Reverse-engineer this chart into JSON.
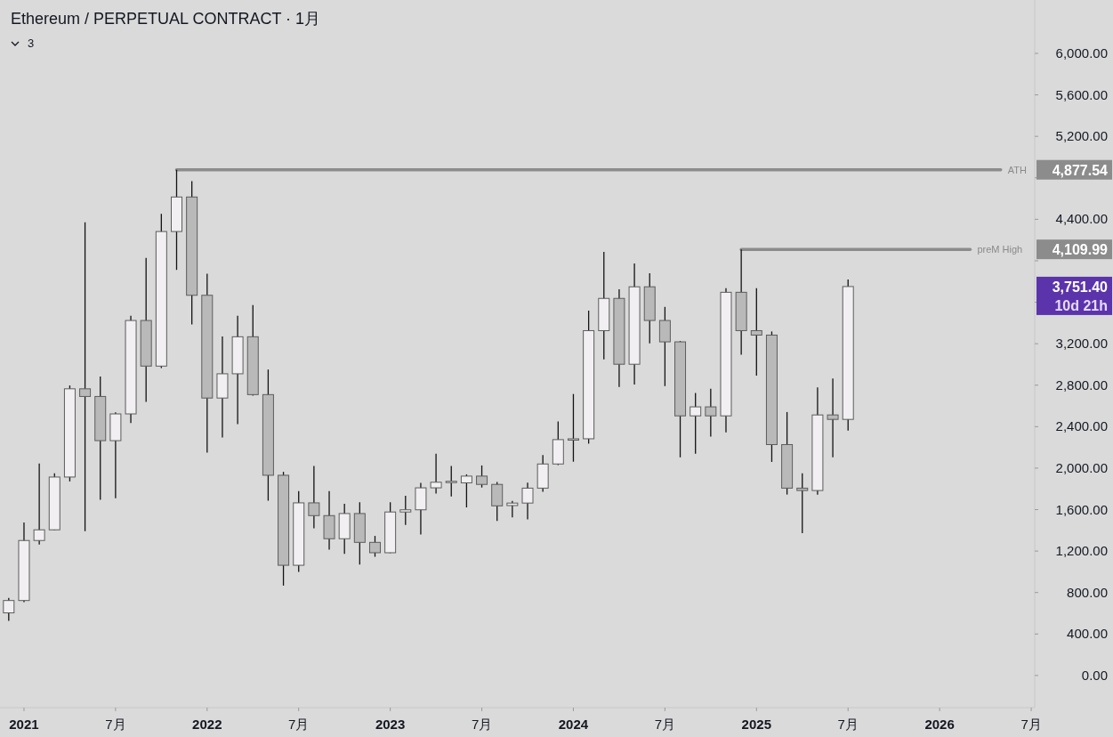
{
  "chart_data": {
    "type": "candlestick",
    "title": "Ethereum / PERPETUAL CONTRACT · 1月",
    "x": [
      "2020-12",
      "2021-01",
      "2021-02",
      "2021-03",
      "2021-04",
      "2021-05",
      "2021-06",
      "2021-07",
      "2021-08",
      "2021-09",
      "2021-10",
      "2021-11",
      "2021-12",
      "2022-01",
      "2022-02",
      "2022-03",
      "2022-04",
      "2022-05",
      "2022-06",
      "2022-07",
      "2022-08",
      "2022-09",
      "2022-10",
      "2022-11",
      "2022-12",
      "2023-01",
      "2023-02",
      "2023-03",
      "2023-04",
      "2023-05",
      "2023-06",
      "2023-07",
      "2023-08",
      "2023-09",
      "2023-10",
      "2023-11",
      "2023-12",
      "2024-01",
      "2024-02",
      "2024-03",
      "2024-04",
      "2024-05",
      "2024-06",
      "2024-07",
      "2024-08",
      "2024-09",
      "2024-10",
      "2024-11",
      "2024-12",
      "2025-01",
      "2025-02",
      "2025-03",
      "2025-04",
      "2025-05",
      "2025-06",
      "2025-07"
    ],
    "ohlc": [
      [
        604,
        749,
        527,
        723
      ],
      [
        723,
        1476,
        707,
        1302
      ],
      [
        1302,
        2044,
        1264,
        1405
      ],
      [
        1405,
        1949,
        1400,
        1914
      ],
      [
        1914,
        2797,
        1872,
        2765
      ],
      [
        2765,
        4370,
        1393,
        2691
      ],
      [
        2691,
        2883,
        1695,
        2265
      ],
      [
        2265,
        2537,
        1710,
        2523
      ],
      [
        2523,
        3469,
        2434,
        3424
      ],
      [
        3424,
        4027,
        2638,
        2984
      ],
      [
        2984,
        4453,
        2966,
        4282
      ],
      [
        4282,
        4877.54,
        3912,
        4615
      ],
      [
        4615,
        4769,
        3386,
        3667
      ],
      [
        3667,
        3876,
        2150,
        2676
      ],
      [
        2676,
        3270,
        2295,
        2910
      ],
      [
        2910,
        3469,
        2425,
        3267
      ],
      [
        3267,
        3572,
        2700,
        2709
      ],
      [
        2709,
        2951,
        1686,
        1931
      ],
      [
        1931,
        1964,
        867,
        1063
      ],
      [
        1063,
        1778,
        1000,
        1665
      ],
      [
        1665,
        2020,
        1420,
        1542
      ],
      [
        1542,
        1778,
        1213,
        1319
      ],
      [
        1319,
        1657,
        1172,
        1562
      ],
      [
        1562,
        1671,
        1069,
        1284
      ],
      [
        1284,
        1346,
        1145,
        1184
      ],
      [
        1184,
        1671,
        1180,
        1577
      ],
      [
        1577,
        1733,
        1452,
        1598
      ],
      [
        1598,
        1858,
        1360,
        1810
      ],
      [
        1810,
        2138,
        1754,
        1864
      ],
      [
        1864,
        2020,
        1727,
        1873
      ],
      [
        1858,
        1940,
        1621,
        1923
      ],
      [
        1923,
        2026,
        1813,
        1843
      ],
      [
        1843,
        1866,
        1490,
        1636
      ],
      [
        1639,
        1683,
        1524,
        1663
      ],
      [
        1663,
        1860,
        1506,
        1807
      ],
      [
        1807,
        2126,
        1772,
        2040
      ],
      [
        2040,
        2449,
        2030,
        2275
      ],
      [
        2282,
        2715,
        2062,
        2283
      ],
      [
        2283,
        3519,
        2236,
        3326
      ],
      [
        3326,
        4086,
        3049,
        3637
      ],
      [
        3637,
        3725,
        2783,
        3002
      ],
      [
        3002,
        3974,
        2806,
        3749
      ],
      [
        3749,
        3879,
        3203,
        3424
      ],
      [
        3424,
        3555,
        2791,
        3218
      ],
      [
        3218,
        3226,
        2104,
        2504
      ],
      [
        2504,
        2724,
        2138,
        2591
      ],
      [
        2591,
        2765,
        2304,
        2504
      ],
      [
        2504,
        3735,
        2345,
        3696
      ],
      [
        3696,
        4109.99,
        3093,
        3326
      ],
      [
        3326,
        3735,
        2892,
        3283
      ],
      [
        3283,
        3318,
        2060,
        2227
      ],
      [
        2227,
        2541,
        1745,
        1807
      ],
      [
        1807,
        1949,
        1372,
        1784
      ],
      [
        1784,
        2779,
        1745,
        2513
      ],
      [
        2513,
        2865,
        2104,
        2470
      ],
      [
        2470,
        3820,
        2363,
        3751.4
      ]
    ],
    "series": [
      {
        "type": "line",
        "name": "ATH",
        "color": "#8c8c8c",
        "x": [
          "2021-11",
          "2026-05"
        ],
        "values": [
          4877.54,
          4877.54
        ]
      },
      {
        "type": "line",
        "name": "preM  High",
        "color": "#8c8c8c",
        "x": [
          "2024-12",
          "2026-03"
        ],
        "values": [
          4109.99,
          4109.99
        ]
      }
    ],
    "annotations": [
      "4,877.54",
      "4,109.99",
      "3,751.40",
      "10d 21h",
      "3"
    ],
    "xlim": [
      "2020-11-14",
      "2026-07-08"
    ],
    "xticks": [
      {
        "value": "2021-01",
        "label": "2021"
      },
      {
        "value": "2021-07",
        "label": "7月"
      },
      {
        "value": "2022-01",
        "label": "2022"
      },
      {
        "value": "2022-07",
        "label": "7月"
      },
      {
        "value": "2023-01",
        "label": "2023"
      },
      {
        "value": "2023-07",
        "label": "7月"
      },
      {
        "value": "2024-01",
        "label": "2024"
      },
      {
        "value": "2024-07",
        "label": "7月"
      },
      {
        "value": "2025-01",
        "label": "2025"
      },
      {
        "value": "2025-07",
        "label": "7月"
      },
      {
        "value": "2026-01",
        "label": "2026"
      },
      {
        "value": "2026-07",
        "label": "7月"
      }
    ],
    "ylim": [
      -310,
      6515
    ],
    "yticks": [
      {
        "value": 0,
        "label": "0.00"
      },
      {
        "value": 400,
        "label": "400.00"
      },
      {
        "value": 800,
        "label": "800.00"
      },
      {
        "value": 1200,
        "label": "1,200.00"
      },
      {
        "value": 1600,
        "label": "1,600.00"
      },
      {
        "value": 2000,
        "label": "2,000.00"
      },
      {
        "value": 2400,
        "label": "2,400.00"
      },
      {
        "value": 2800,
        "label": "2,800.00"
      },
      {
        "value": 3200,
        "label": "3,200.00"
      },
      {
        "value": 3600,
        "label": null
      },
      {
        "value": 4000,
        "label": null
      },
      {
        "value": 4400,
        "label": "4,400.00"
      },
      {
        "value": 4800,
        "label": null
      },
      {
        "value": 5200,
        "label": "5,200.00"
      },
      {
        "value": 5600,
        "label": "5,600.00"
      },
      {
        "value": 6000,
        "label": "6,000.00"
      }
    ]
  }
}
